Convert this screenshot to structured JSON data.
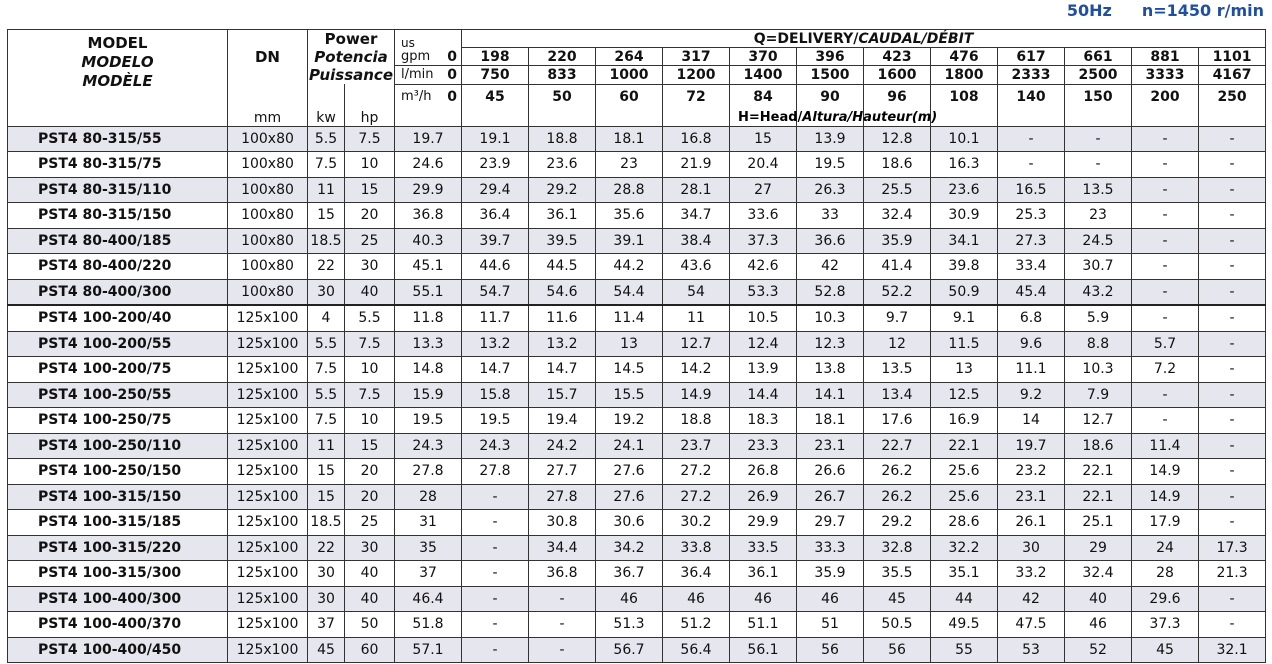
{
  "header": {
    "frequency": "50Hz",
    "speed": "n=1450 r/min"
  },
  "table": {
    "model_label": [
      "MODEL",
      "MODELO",
      "MODÈLE"
    ],
    "dn_label": "DN",
    "dn_unit": "mm",
    "power_label": [
      "Power",
      "Potencia",
      "Puissance"
    ],
    "kw_label": "kw",
    "hp_label": "hp",
    "flow_prefix": "us",
    "flow_title": [
      "Q=DELIVERY/",
      "CAUDAL/DÉBIT"
    ],
    "head_title": [
      "H=Head/",
      "Altura/Hauteur(m)"
    ],
    "flow_rows": [
      {
        "unit": "gpm",
        "values": [
          "0",
          "198",
          "220",
          "264",
          "317",
          "370",
          "396",
          "423",
          "476",
          "617",
          "661",
          "881",
          "1101"
        ]
      },
      {
        "unit": "l/min",
        "values": [
          "0",
          "750",
          "833",
          "1000",
          "1200",
          "1400",
          "1500",
          "1600",
          "1800",
          "2333",
          "2500",
          "3333",
          "4167"
        ]
      },
      {
        "unit": "m³/h",
        "values": [
          "0",
          "45",
          "50",
          "60",
          "72",
          "84",
          "90",
          "96",
          "108",
          "140",
          "150",
          "200",
          "250"
        ]
      }
    ],
    "rows": [
      [
        "PST4 80-315/55",
        "100x80",
        "5.5",
        "7.5",
        "19.7",
        "19.1",
        "18.8",
        "18.1",
        "16.8",
        "15",
        "13.9",
        "12.8",
        "10.1",
        "-",
        "-",
        "-",
        "-"
      ],
      [
        "PST4 80-315/75",
        "100x80",
        "7.5",
        "10",
        "24.6",
        "23.9",
        "23.6",
        "23",
        "21.9",
        "20.4",
        "19.5",
        "18.6",
        "16.3",
        "-",
        "-",
        "-",
        "-"
      ],
      [
        "PST4 80-315/110",
        "100x80",
        "11",
        "15",
        "29.9",
        "29.4",
        "29.2",
        "28.8",
        "28.1",
        "27",
        "26.3",
        "25.5",
        "23.6",
        "16.5",
        "13.5",
        "-",
        "-"
      ],
      [
        "PST4 80-315/150",
        "100x80",
        "15",
        "20",
        "36.8",
        "36.4",
        "36.1",
        "35.6",
        "34.7",
        "33.6",
        "33",
        "32.4",
        "30.9",
        "25.3",
        "23",
        "-",
        "-"
      ],
      [
        "PST4 80-400/185",
        "100x80",
        "18.5",
        "25",
        "40.3",
        "39.7",
        "39.5",
        "39.1",
        "38.4",
        "37.3",
        "36.6",
        "35.9",
        "34.1",
        "27.3",
        "24.5",
        "-",
        "-"
      ],
      [
        "PST4 80-400/220",
        "100x80",
        "22",
        "30",
        "45.1",
        "44.6",
        "44.5",
        "44.2",
        "43.6",
        "42.6",
        "42",
        "41.4",
        "39.8",
        "33.4",
        "30.7",
        "-",
        "-"
      ],
      [
        "PST4 80-400/300",
        "100x80",
        "30",
        "40",
        "55.1",
        "54.7",
        "54.6",
        "54.4",
        "54",
        "53.3",
        "52.8",
        "52.2",
        "50.9",
        "45.4",
        "43.2",
        "-",
        "-"
      ],
      [
        "PST4 100-200/40",
        "125x100",
        "4",
        "5.5",
        "11.8",
        "11.7",
        "11.6",
        "11.4",
        "11",
        "10.5",
        "10.3",
        "9.7",
        "9.1",
        "6.8",
        "5.9",
        "-",
        "-"
      ],
      [
        "PST4 100-200/55",
        "125x100",
        "5.5",
        "7.5",
        "13.3",
        "13.2",
        "13.2",
        "13",
        "12.7",
        "12.4",
        "12.3",
        "12",
        "11.5",
        "9.6",
        "8.8",
        "5.7",
        "-"
      ],
      [
        "PST4 100-200/75",
        "125x100",
        "7.5",
        "10",
        "14.8",
        "14.7",
        "14.7",
        "14.5",
        "14.2",
        "13.9",
        "13.8",
        "13.5",
        "13",
        "11.1",
        "10.3",
        "7.2",
        "-"
      ],
      [
        "PST4 100-250/55",
        "125x100",
        "5.5",
        "7.5",
        "15.9",
        "15.8",
        "15.7",
        "15.5",
        "14.9",
        "14.4",
        "14.1",
        "13.4",
        "12.5",
        "9.2",
        "7.9",
        "-",
        "-"
      ],
      [
        "PST4 100-250/75",
        "125x100",
        "7.5",
        "10",
        "19.5",
        "19.5",
        "19.4",
        "19.2",
        "18.8",
        "18.3",
        "18.1",
        "17.6",
        "16.9",
        "14",
        "12.7",
        "-",
        "-"
      ],
      [
        "PST4 100-250/110",
        "125x100",
        "11",
        "15",
        "24.3",
        "24.3",
        "24.2",
        "24.1",
        "23.7",
        "23.3",
        "23.1",
        "22.7",
        "22.1",
        "19.7",
        "18.6",
        "11.4",
        "-"
      ],
      [
        "PST4 100-250/150",
        "125x100",
        "15",
        "20",
        "27.8",
        "27.8",
        "27.7",
        "27.6",
        "27.2",
        "26.8",
        "26.6",
        "26.2",
        "25.6",
        "23.2",
        "22.1",
        "14.9",
        "-"
      ],
      [
        "PST4 100-315/150",
        "125x100",
        "15",
        "20",
        "28",
        "-",
        "27.8",
        "27.6",
        "27.2",
        "26.9",
        "26.7",
        "26.2",
        "25.6",
        "23.1",
        "22.1",
        "14.9",
        "-"
      ],
      [
        "PST4 100-315/185",
        "125x100",
        "18.5",
        "25",
        "31",
        "-",
        "30.8",
        "30.6",
        "30.2",
        "29.9",
        "29.7",
        "29.2",
        "28.6",
        "26.1",
        "25.1",
        "17.9",
        "-"
      ],
      [
        "PST4 100-315/220",
        "125x100",
        "22",
        "30",
        "35",
        "-",
        "34.4",
        "34.2",
        "33.8",
        "33.5",
        "33.3",
        "32.8",
        "32.2",
        "30",
        "29",
        "24",
        "17.3"
      ],
      [
        "PST4 100-315/300",
        "125x100",
        "30",
        "40",
        "37",
        "-",
        "36.8",
        "36.7",
        "36.4",
        "36.1",
        "35.9",
        "35.5",
        "35.1",
        "33.2",
        "32.4",
        "28",
        "21.3"
      ],
      [
        "PST4 100-400/300",
        "125x100",
        "30",
        "40",
        "46.4",
        "-",
        "-",
        "46",
        "46",
        "46",
        "46",
        "45",
        "44",
        "42",
        "40",
        "29.6",
        "-"
      ],
      [
        "PST4 100-400/370",
        "125x100",
        "37",
        "50",
        "51.8",
        "-",
        "-",
        "51.3",
        "51.2",
        "51.1",
        "51",
        "50.5",
        "49.5",
        "47.5",
        "46",
        "37.3",
        "-"
      ],
      [
        "PST4 100-400/450",
        "125x100",
        "45",
        "60",
        "57.1",
        "-",
        "-",
        "56.7",
        "56.4",
        "56.1",
        "56",
        "56",
        "55",
        "53",
        "52",
        "45",
        "32.1"
      ]
    ]
  }
}
